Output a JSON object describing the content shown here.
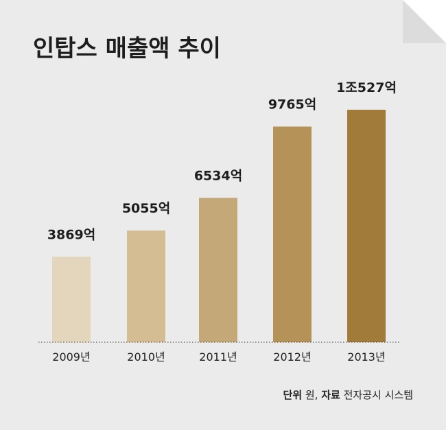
{
  "chart_data": {
    "type": "bar",
    "title": "인탑스 매출액 추이",
    "categories": [
      "2009년",
      "2010년",
      "2011년",
      "2012년",
      "2013년"
    ],
    "values": [
      3869,
      5055,
      6534,
      9765,
      10527
    ],
    "value_labels": [
      "3869억",
      "5055억",
      "6534억",
      "9765억",
      "1조527억"
    ],
    "ylim": [
      0,
      12000
    ],
    "grid": false,
    "colors": [
      "#e3d6bd",
      "#d4bd93",
      "#c4a878",
      "#b49258",
      "#a17b39"
    ]
  },
  "footer": {
    "unit_key": "단위",
    "unit_value": " 원, ",
    "source_key": "자료",
    "source_value": " 전자공시 시스템"
  }
}
